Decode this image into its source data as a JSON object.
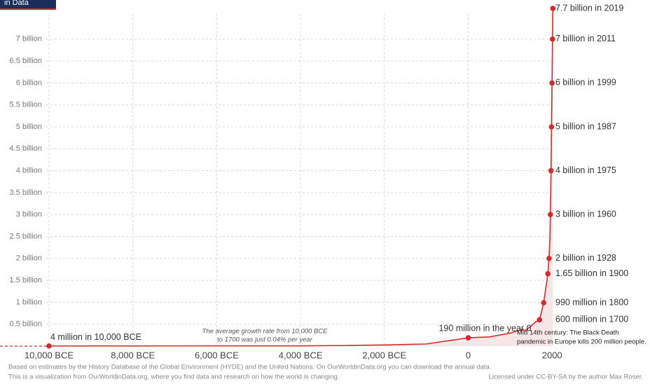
{
  "logo_text": "in Data",
  "chart_data": {
    "type": "line",
    "xlim": [
      -10000,
      2030
    ],
    "ylim": [
      0,
      7700000000
    ],
    "xticks": [
      {
        "value": -10000,
        "label": "10,000 BCE"
      },
      {
        "value": -8000,
        "label": "8,000 BCE"
      },
      {
        "value": -6000,
        "label": "6,000 BCE"
      },
      {
        "value": -4000,
        "label": "4,000 BCE"
      },
      {
        "value": -2000,
        "label": "2,000 BCE"
      },
      0,
      2000
    ],
    "yticks": [
      {
        "value": 500000000,
        "label": "0.5 billion"
      },
      {
        "value": 1000000000,
        "label": "1 billion"
      },
      {
        "value": 1500000000,
        "label": "1.5 billion"
      },
      {
        "value": 2000000000,
        "label": "2 billion"
      },
      {
        "value": 2500000000,
        "label": "2.5 billion"
      },
      {
        "value": 3000000000,
        "label": "3 billion"
      },
      {
        "value": 3500000000,
        "label": "3.5 billion"
      },
      {
        "value": 4000000000,
        "label": "4 billion"
      },
      {
        "value": 4500000000,
        "label": "4.5 billion"
      },
      {
        "value": 5000000000,
        "label": "5 billion"
      },
      {
        "value": 5500000000,
        "label": "5.5 billion"
      },
      {
        "value": 6000000000,
        "label": "6 billion"
      },
      {
        "value": 6500000000,
        "label": "6.5 billion"
      },
      {
        "value": 7000000000,
        "label": "7 billion"
      }
    ],
    "grid": true,
    "color": "#d42b2b",
    "area_color": "#f6e6e8",
    "x": [
      -10000,
      -8000,
      -6000,
      -4000,
      -3000,
      -2000,
      -1000,
      0,
      500,
      1000,
      1300,
      1350,
      1500,
      1600,
      1700,
      1800,
      1900,
      1928,
      1950,
      1960,
      1975,
      1987,
      1999,
      2011,
      2019
    ],
    "values": [
      4000000,
      5000000,
      7000000,
      7000000,
      14000000,
      27000000,
      50000000,
      190000000,
      210000000,
      295000000,
      390000000,
      350000000,
      460000000,
      550000000,
      600000000,
      990000000,
      1650000000,
      2000000000,
      2500000000,
      3000000000,
      4000000000,
      5000000000,
      6000000000,
      7000000000,
      7700000000
    ],
    "annotations": [
      {
        "x": -10000,
        "value": 4000000,
        "label": "4 million in 10,000 BCE"
      },
      {
        "x": 0,
        "value": 190000000,
        "label": "190 million in the year 0"
      },
      {
        "x": 1700,
        "value": 600000000,
        "label": "600 million in 1700"
      },
      {
        "x": 1800,
        "value": 990000000,
        "label": "990 million in 1800"
      },
      {
        "x": 1900,
        "value": 1650000000,
        "label": "1.65 billion in 1900"
      },
      {
        "x": 1928,
        "value": 2000000000,
        "label": "2 billion in 1928"
      },
      {
        "x": 1960,
        "value": 3000000000,
        "label": "3 billion in 1960"
      },
      {
        "x": 1975,
        "value": 4000000000,
        "label": "4 billion in 1975"
      },
      {
        "x": 1987,
        "value": 5000000000,
        "label": "5 billion in 1987"
      },
      {
        "x": 1999,
        "value": 6000000000,
        "label": "6 billion in 1999"
      },
      {
        "x": 2011,
        "value": 7000000000,
        "label": "7 billion in 2011"
      },
      {
        "x": 2019,
        "value": 7700000000,
        "label": "7.7 billion in 2019"
      }
    ],
    "growth_note": [
      "The average growth rate from 10,000 BCE",
      "to 1700 was just  0.04% per year"
    ],
    "black_death_note": [
      "Mid 14th century: The Black Death",
      "pandemic in Europe kills 200 million people."
    ],
    "footer": [
      "Based on estimates by the History Database of the Global Environment (HYDE) and the United Nations. On OurWorldinData.org you can download the annual data.",
      "This is a visualization from OurWorldinData.org, where you find data and research on how the world is changing."
    ],
    "license": "Licensed under CC-BY-SA by the author Max Roser."
  }
}
